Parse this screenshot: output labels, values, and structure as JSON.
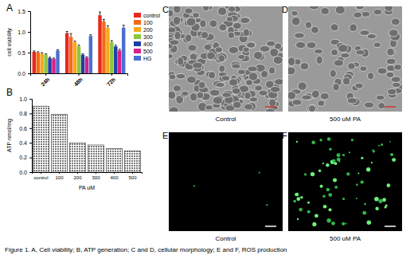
{
  "chart_data": [
    {
      "type": "bar",
      "panel": "A",
      "y_label": "cell viability",
      "categories": [
        "24h",
        "48h",
        "72h"
      ],
      "series": [
        {
          "name": "control",
          "color": "#e8281e",
          "values": [
            0.52,
            0.97,
            1.4
          ],
          "errors": [
            0.02,
            0.04,
            0.08
          ]
        },
        {
          "name": "100",
          "color": "#f26b1d",
          "values": [
            0.5,
            0.88,
            1.25
          ],
          "errors": [
            0.02,
            0.08,
            0.05
          ]
        },
        {
          "name": "200",
          "color": "#f6a81c",
          "values": [
            0.48,
            0.75,
            1.1
          ],
          "errors": [
            0.02,
            0.03,
            0.05
          ]
        },
        {
          "name": "300",
          "color": "#8cc63f",
          "values": [
            0.45,
            0.65,
            0.75
          ],
          "errors": [
            0.02,
            0.03,
            0.04
          ]
        },
        {
          "name": "400",
          "color": "#1f3fa6",
          "values": [
            0.37,
            0.45,
            0.65
          ],
          "errors": [
            0.02,
            0.02,
            0.03
          ]
        },
        {
          "name": "500",
          "color": "#d6208c",
          "values": [
            0.35,
            0.38,
            0.55
          ],
          "errors": [
            0.02,
            0.02,
            0.03
          ]
        },
        {
          "name": "HG",
          "color": "#4a6fd0",
          "values": [
            0.55,
            0.9,
            1.1
          ],
          "errors": [
            0.02,
            0.03,
            0.06
          ]
        }
      ],
      "ylim": [
        0,
        1.5
      ],
      "yticks": [
        {
          "value": 0,
          "label": "0.0"
        },
        {
          "value": 0.5,
          "label": "0.5"
        },
        {
          "value": 1,
          "label": "1.0"
        },
        {
          "value": 1.5,
          "label": "1.5"
        }
      ],
      "legend": "right"
    },
    {
      "type": "bar",
      "panel": "B",
      "y_label": "ATP nmol/mg",
      "x_label": "PA uM",
      "categories": [
        "control",
        "100",
        "200",
        "300",
        "400",
        "500"
      ],
      "values": [
        0.9,
        0.79,
        0.4,
        0.37,
        0.32,
        0.29
      ],
      "color": "#7a7a7a",
      "ylim": [
        0,
        1
      ],
      "yticks": [
        {
          "value": 0,
          "label": "0.0"
        },
        {
          "value": 0.2,
          "label": "0.2"
        },
        {
          "value": 0.4,
          "label": "0.4"
        },
        {
          "value": 0.6,
          "label": "0.6"
        },
        {
          "value": 0.8,
          "label": "0.8"
        },
        {
          "value": 1,
          "label": "1.0"
        }
      ]
    }
  ],
  "images": [
    {
      "panel": "C",
      "label": "Control",
      "kind": "morphology"
    },
    {
      "panel": "D",
      "label": "500 uM PA",
      "kind": "morphology"
    },
    {
      "panel": "E",
      "label": "Control",
      "kind": "ros"
    },
    {
      "panel": "F",
      "label": "500 uM PA",
      "kind": "ros"
    }
  ],
  "caption": "Figure 1. A, Cell viability; B, ATP generation; C and D, cellular morphology; E and F, ROS production"
}
